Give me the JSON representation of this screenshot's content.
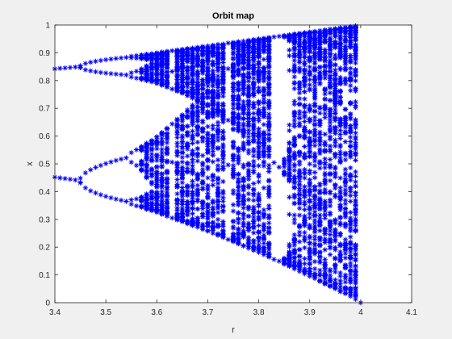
{
  "chart_data": {
    "type": "scatter",
    "title": "Orbit map",
    "xlabel": "r",
    "ylabel": "x",
    "xlim": [
      3.4,
      4.1
    ],
    "ylim": [
      0,
      1
    ],
    "x_ticks": [
      "3.4",
      "3.5",
      "3.6",
      "3.7",
      "3.8",
      "3.9",
      "4",
      "4.1"
    ],
    "y_ticks": [
      "0",
      "0.1",
      "0.2",
      "0.3",
      "0.4",
      "0.5",
      "0.6",
      "0.7",
      "0.8",
      "0.9",
      "1"
    ],
    "grid": false,
    "marker": "asterisk",
    "marker_color": "#0000ff",
    "r_start": 3.4,
    "r_end": 4.0,
    "r_step": 0.01,
    "series": [
      {
        "values_description_free": true,
        "sample_points": [
          {
            "r": 3.4,
            "x": [
              0.452,
              0.8422
            ]
          },
          {
            "r": 3.45,
            "x": [
              0.44,
              0.8499,
              0.8127,
              0.3548
            ]
          },
          {
            "r": 3.5,
            "x": [
              0.3828,
              0.5009,
              0.8269,
              0.875
            ]
          },
          {
            "r": 3.55,
            "x": [
              0.3548,
              0.506,
              0.8127,
              0.8874
            ]
          },
          {
            "r": 3.63,
            "x": [
              0.3143,
              0.5069,
              0.8914
            ]
          },
          {
            "r": 3.74,
            "x": [
              0.2876,
              0.766,
              0.9336
            ]
          },
          {
            "r": 3.83,
            "x": [
              0.1561,
              0.5047,
              0.9574
            ]
          },
          {
            "r": 4.0,
            "x": [
              0.0,
              0.5,
              1.0
            ]
          }
        ]
      }
    ]
  }
}
